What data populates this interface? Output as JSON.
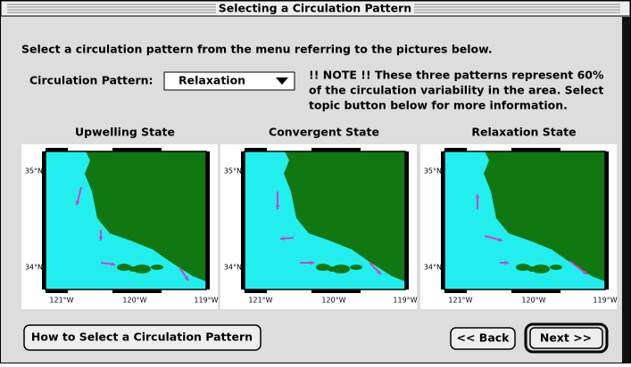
{
  "window": {
    "title": "Selecting a Circulation Pattern"
  },
  "instruction": "Select a circulation pattern from the menu referring to the pictures below.",
  "selector": {
    "label": "Circulation Pattern:",
    "value": "Relaxation"
  },
  "note": [
    "!! NOTE !!  These three patterns represent 60%",
    "of the circulation variability in the area.  Select",
    "topic button below for more information."
  ],
  "maps": [
    {
      "title": "Upwelling State",
      "lat_labels": [
        "35°N",
        "34°N"
      ],
      "lon_labels": [
        "121°W",
        "120°W",
        "119°W"
      ]
    },
    {
      "title": "Convergent State",
      "lat_labels": [
        "35°N",
        "34°N"
      ],
      "lon_labels": [
        "121°W",
        "120°W",
        "119°W"
      ]
    },
    {
      "title": "Relaxation State",
      "lat_labels": [
        "35°N",
        "34°N"
      ],
      "lon_labels": [
        "121°W",
        "120°W",
        "119°W"
      ]
    }
  ],
  "buttons": {
    "help": "How to Select a Circulation Pattern",
    "back": "<< Back",
    "next": "Next >>"
  }
}
